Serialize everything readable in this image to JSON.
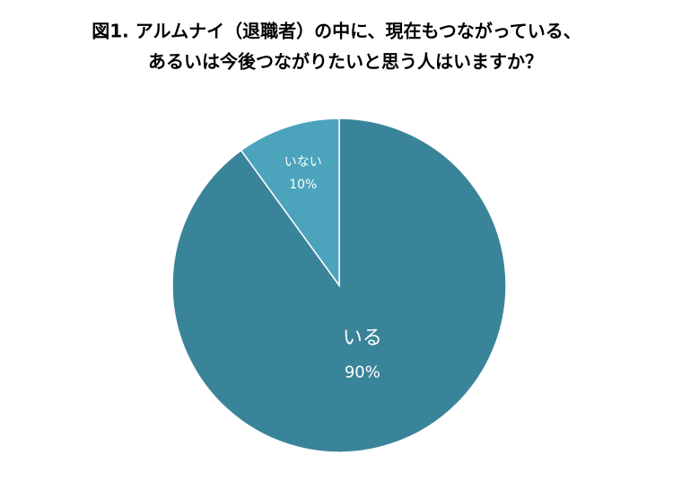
{
  "chart_data": {
    "type": "pie",
    "title": [
      "図1. アルムナイ（退職者）の中に、現在もつながっている、",
      "あるいは今後つながりたいと思う人はいますか？"
    ],
    "categories": [
      "いる",
      "いない"
    ],
    "values": [
      90,
      10
    ],
    "value_labels": [
      "90%",
      "10%"
    ],
    "colors": [
      "#3a8499",
      "#4ba3bc"
    ]
  }
}
